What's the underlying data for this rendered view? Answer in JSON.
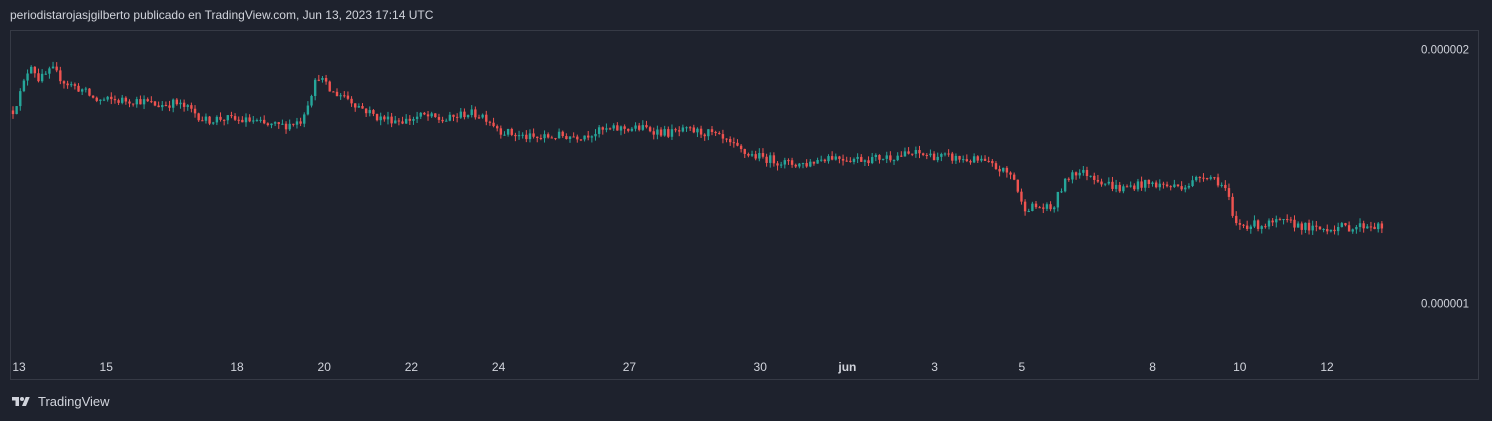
{
  "header": {
    "text": "periodistarojasjgilberto publicado en TradingView.com, Jun 13, 2023 17:14 UTC"
  },
  "footer": {
    "brand": "TradingView",
    "logo_icon": "tradingview-logo-icon"
  },
  "colors": {
    "background": "#1e222d",
    "up": "#26a69a",
    "down": "#ef5350",
    "border": "#363a45",
    "text": "#d1d4dc"
  },
  "chart_data": {
    "type": "candlestick",
    "title": "",
    "xlabel": "",
    "ylabel": "",
    "y_ticks": [
      {
        "value": 2e-06,
        "label": "0.000002"
      },
      {
        "value": 1e-06,
        "label": "0.000001"
      }
    ],
    "x_ticks": [
      {
        "label": "13",
        "day": 0,
        "bold": false
      },
      {
        "label": "15",
        "day": 2,
        "bold": false
      },
      {
        "label": "18",
        "day": 5,
        "bold": false
      },
      {
        "label": "20",
        "day": 7,
        "bold": false
      },
      {
        "label": "22",
        "day": 9,
        "bold": false
      },
      {
        "label": "24",
        "day": 11,
        "bold": false
      },
      {
        "label": "27",
        "day": 14,
        "bold": false
      },
      {
        "label": "30",
        "day": 17,
        "bold": false
      },
      {
        "label": "jun",
        "day": 19,
        "bold": true
      },
      {
        "label": "3",
        "day": 21,
        "bold": false
      },
      {
        "label": "5",
        "day": 23,
        "bold": false
      },
      {
        "label": "8",
        "day": 26,
        "bold": false
      },
      {
        "label": "10",
        "day": 28,
        "bold": false
      },
      {
        "label": "12",
        "day": 30,
        "bold": false
      }
    ],
    "price_path": [
      [
        0.0,
        1.76e-06
      ],
      [
        0.2,
        1.84e-06
      ],
      [
        0.4,
        1.95e-06
      ],
      [
        0.6,
        1.88e-06
      ],
      [
        0.9,
        1.92e-06
      ],
      [
        1.2,
        1.87e-06
      ],
      [
        1.6,
        1.84e-06
      ],
      [
        1.9,
        1.8e-06
      ],
      [
        2.4,
        1.8e-06
      ],
      [
        2.9,
        1.8e-06
      ],
      [
        3.3,
        1.78e-06
      ],
      [
        3.7,
        1.79e-06
      ],
      [
        4.1,
        1.76e-06
      ],
      [
        4.4,
        1.72e-06
      ],
      [
        4.8,
        1.73e-06
      ],
      [
        5.2,
        1.72e-06
      ],
      [
        5.5,
        1.72e-06
      ],
      [
        5.8,
        1.7e-06
      ],
      [
        6.2,
        1.7e-06
      ],
      [
        6.6,
        1.72e-06
      ],
      [
        7.0,
        1.9e-06
      ],
      [
        7.3,
        1.83e-06
      ],
      [
        7.6,
        1.82e-06
      ],
      [
        7.9,
        1.78e-06
      ],
      [
        8.4,
        1.73e-06
      ],
      [
        9.0,
        1.72e-06
      ],
      [
        9.4,
        1.74e-06
      ],
      [
        9.9,
        1.72e-06
      ],
      [
        10.4,
        1.75e-06
      ],
      [
        10.8,
        1.74e-06
      ],
      [
        11.2,
        1.68e-06
      ],
      [
        11.6,
        1.66e-06
      ],
      [
        12.0,
        1.65e-06
      ],
      [
        12.5,
        1.66e-06
      ],
      [
        13.0,
        1.66e-06
      ],
      [
        13.5,
        1.68e-06
      ],
      [
        14.0,
        1.69e-06
      ],
      [
        14.5,
        1.69e-06
      ],
      [
        15.0,
        1.67e-06
      ],
      [
        15.5,
        1.68e-06
      ],
      [
        16.0,
        1.67e-06
      ],
      [
        16.4,
        1.63e-06
      ],
      [
        16.8,
        1.59e-06
      ],
      [
        17.3,
        1.57e-06
      ],
      [
        17.8,
        1.55e-06
      ],
      [
        18.2,
        1.55e-06
      ],
      [
        18.7,
        1.58e-06
      ],
      [
        19.2,
        1.57e-06
      ],
      [
        19.7,
        1.57e-06
      ],
      [
        20.2,
        1.58e-06
      ],
      [
        20.7,
        1.59e-06
      ],
      [
        21.2,
        1.58e-06
      ],
      [
        21.7,
        1.57e-06
      ],
      [
        22.2,
        1.56e-06
      ],
      [
        22.6,
        1.53e-06
      ],
      [
        22.95,
        1.5e-06
      ],
      [
        23.15,
        1.38e-06
      ],
      [
        23.5,
        1.38e-06
      ],
      [
        23.85,
        1.37e-06
      ],
      [
        24.0,
        1.44e-06
      ],
      [
        24.3,
        1.52e-06
      ],
      [
        24.7,
        1.51e-06
      ],
      [
        25.0,
        1.48e-06
      ],
      [
        25.4,
        1.45e-06
      ],
      [
        25.8,
        1.47e-06
      ],
      [
        26.2,
        1.47e-06
      ],
      [
        26.6,
        1.46e-06
      ],
      [
        27.0,
        1.47e-06
      ],
      [
        27.3,
        1.51e-06
      ],
      [
        27.6,
        1.49e-06
      ],
      [
        27.85,
        1.44e-06
      ],
      [
        28.0,
        1.31e-06
      ],
      [
        28.3,
        1.31e-06
      ],
      [
        28.7,
        1.31e-06
      ],
      [
        29.1,
        1.32e-06
      ],
      [
        29.5,
        1.31e-06
      ],
      [
        29.85,
        1.29e-06
      ],
      [
        30.3,
        1.3e-06
      ],
      [
        30.7,
        1.3e-06
      ],
      [
        31.1,
        1.31e-06
      ],
      [
        31.4,
        1.3e-06
      ]
    ]
  }
}
